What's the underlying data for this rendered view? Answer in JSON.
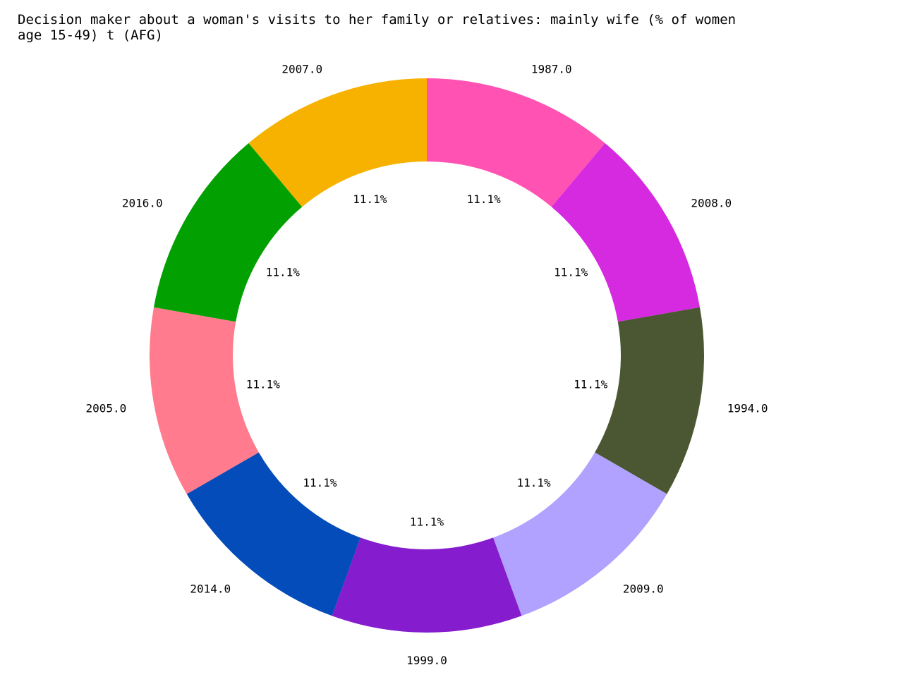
{
  "chart_data": {
    "type": "pie",
    "variant": "donut",
    "title": "Decision maker about a woman's visits to her family or relatives: mainly wife (% of women\nage 15-49) t (AFG)",
    "categories": [
      "1987.0",
      "2008.0",
      "1994.0",
      "2009.0",
      "1999.0",
      "2014.0",
      "2005.0",
      "2016.0",
      "2007.0"
    ],
    "values": [
      1,
      1,
      1,
      1,
      1,
      1,
      1,
      1,
      1
    ],
    "percent_labels": [
      "11.1%",
      "11.1%",
      "11.1%",
      "11.1%",
      "11.1%",
      "11.1%",
      "11.1%",
      "11.1%",
      "11.1%"
    ],
    "colors": [
      "#ff52b3",
      "#d52adf",
      "#4b5632",
      "#b0a2fe",
      "#851ccd",
      "#034cba",
      "#ff7b8d",
      "#03a002",
      "#f7b200"
    ],
    "start_angle": "top",
    "direction": "clockwise",
    "legend": "none"
  }
}
